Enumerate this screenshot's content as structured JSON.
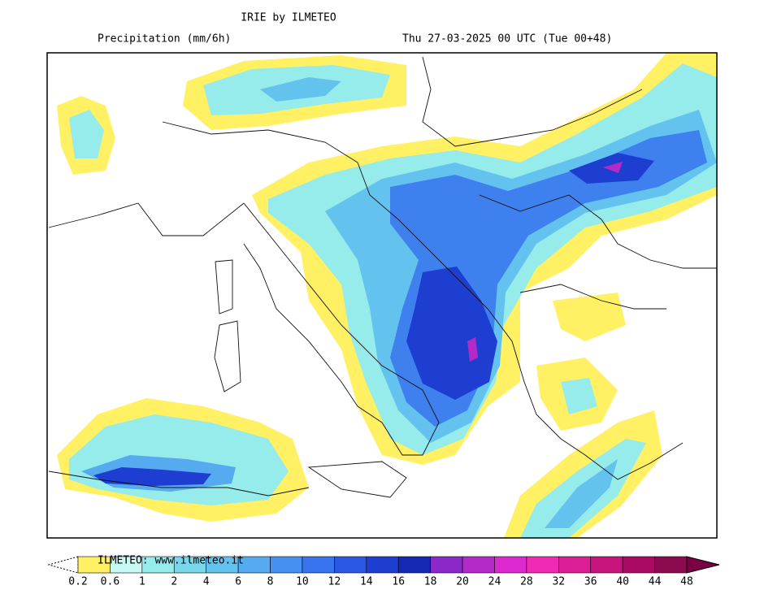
{
  "header": {
    "title": "IRIE by ILMETEO",
    "subtitle": "Precipitation (mm/6h)",
    "valid_time": "Thu 27-03-2025 00 UTC (Tue 00+48)"
  },
  "legend": {
    "watermark": "ILMETEO: www.ilmeteo.it",
    "levels": [
      0.2,
      0.6,
      1,
      2,
      4,
      6,
      8,
      10,
      12,
      14,
      16,
      18,
      20,
      24,
      28,
      32,
      36,
      40,
      44,
      48
    ],
    "colors": [
      "#fff064",
      "#c8faf5",
      "#96ebeb",
      "#78d7eb",
      "#64c3ee",
      "#55aaf0",
      "#4691f0",
      "#3774ee",
      "#2a58e4",
      "#1e3ed2",
      "#1428b4",
      "#8c28c8",
      "#b42ac8",
      "#dc2ad0",
      "#f02ab4",
      "#dc1e96",
      "#c8147d",
      "#aa0a64",
      "#8c0a50"
    ],
    "under_color": "#ffffff",
    "over_color": "#7a0046"
  }
}
